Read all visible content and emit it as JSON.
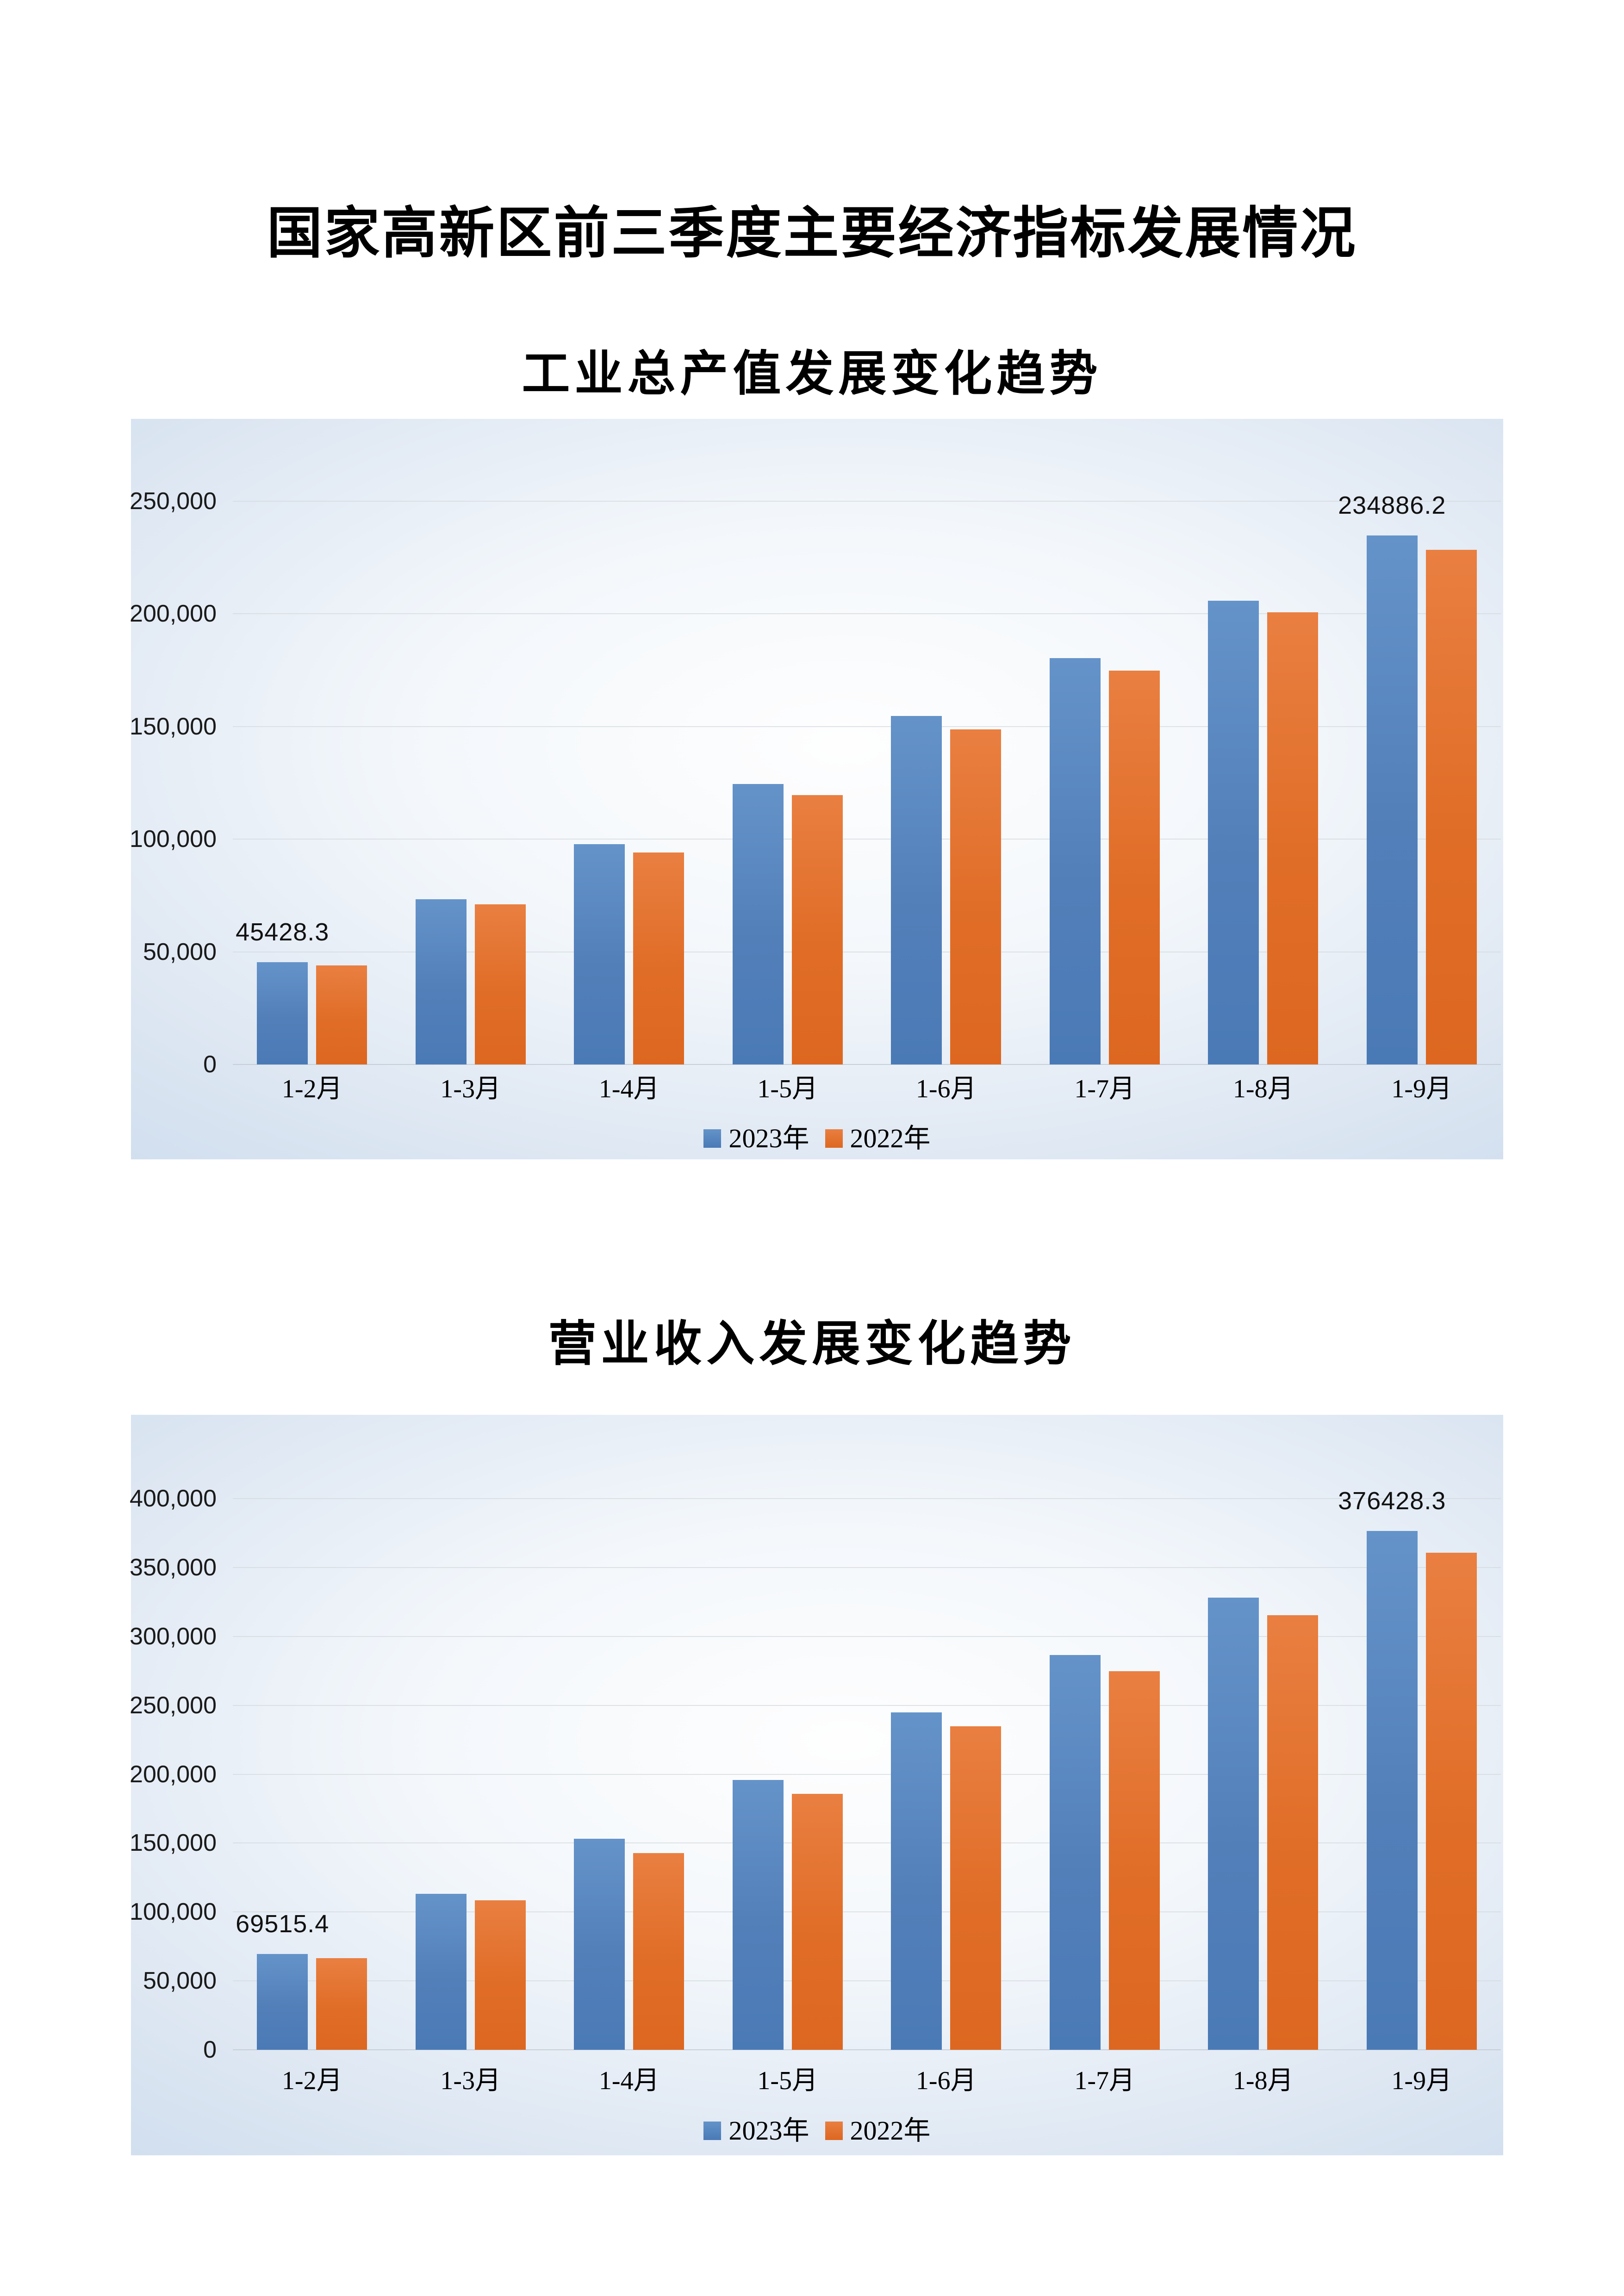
{
  "page": {
    "title": "国家高新区前三季度主要经济指标发展情况"
  },
  "colors": {
    "series_2023_blue": "#537fb9",
    "series_2022_orange": "#e06d27",
    "panel_background_edge": "#cddced",
    "panel_background_center": "#fefefe"
  },
  "chart_data": [
    {
      "type": "bar",
      "title": "工业总产值发展变化趋势",
      "categories": [
        "1-2月",
        "1-3月",
        "1-4月",
        "1-5月",
        "1-6月",
        "1-7月",
        "1-8月",
        "1-9月"
      ],
      "series": [
        {
          "name": "2023年",
          "color": "#537fb9",
          "values": [
            45428.3,
            73300,
            97700,
            124500,
            154600,
            180300,
            205800,
            234886.2
          ]
        },
        {
          "name": "2022年",
          "color": "#e06d27",
          "values": [
            44000,
            71000,
            94000,
            119500,
            148700,
            174800,
            200700,
            228400
          ]
        }
      ],
      "ylim": [
        0,
        250000
      ],
      "ytick_labels": [
        "0",
        "50,000",
        "100,000",
        "150,000",
        "200,000",
        "250,000"
      ],
      "grid": true,
      "legend_position": "bottom",
      "data_labels": [
        {
          "series": 0,
          "index": 0,
          "text": "45428.3"
        },
        {
          "series": 0,
          "index": 7,
          "text": "234886.2"
        }
      ]
    },
    {
      "type": "bar",
      "title": "营业收入发展变化趋势",
      "categories": [
        "1-2月",
        "1-3月",
        "1-4月",
        "1-5月",
        "1-6月",
        "1-7月",
        "1-8月",
        "1-9月"
      ],
      "series": [
        {
          "name": "2023年",
          "color": "#537fb9",
          "values": [
            69515.4,
            113300,
            153300,
            195900,
            244900,
            286400,
            328200,
            376428.3
          ]
        },
        {
          "name": "2022年",
          "color": "#e06d27",
          "values": [
            66500,
            108400,
            142800,
            185800,
            234800,
            274800,
            315500,
            360700
          ]
        }
      ],
      "ylim": [
        0,
        400000
      ],
      "ytick_labels": [
        "0",
        "50,000",
        "100,000",
        "150,000",
        "200,000",
        "250,000",
        "300,000",
        "350,000",
        "400,000"
      ],
      "grid": true,
      "legend_position": "bottom",
      "data_labels": [
        {
          "series": 0,
          "index": 0,
          "text": "69515.4"
        },
        {
          "series": 0,
          "index": 7,
          "text": "376428.3"
        }
      ]
    }
  ]
}
